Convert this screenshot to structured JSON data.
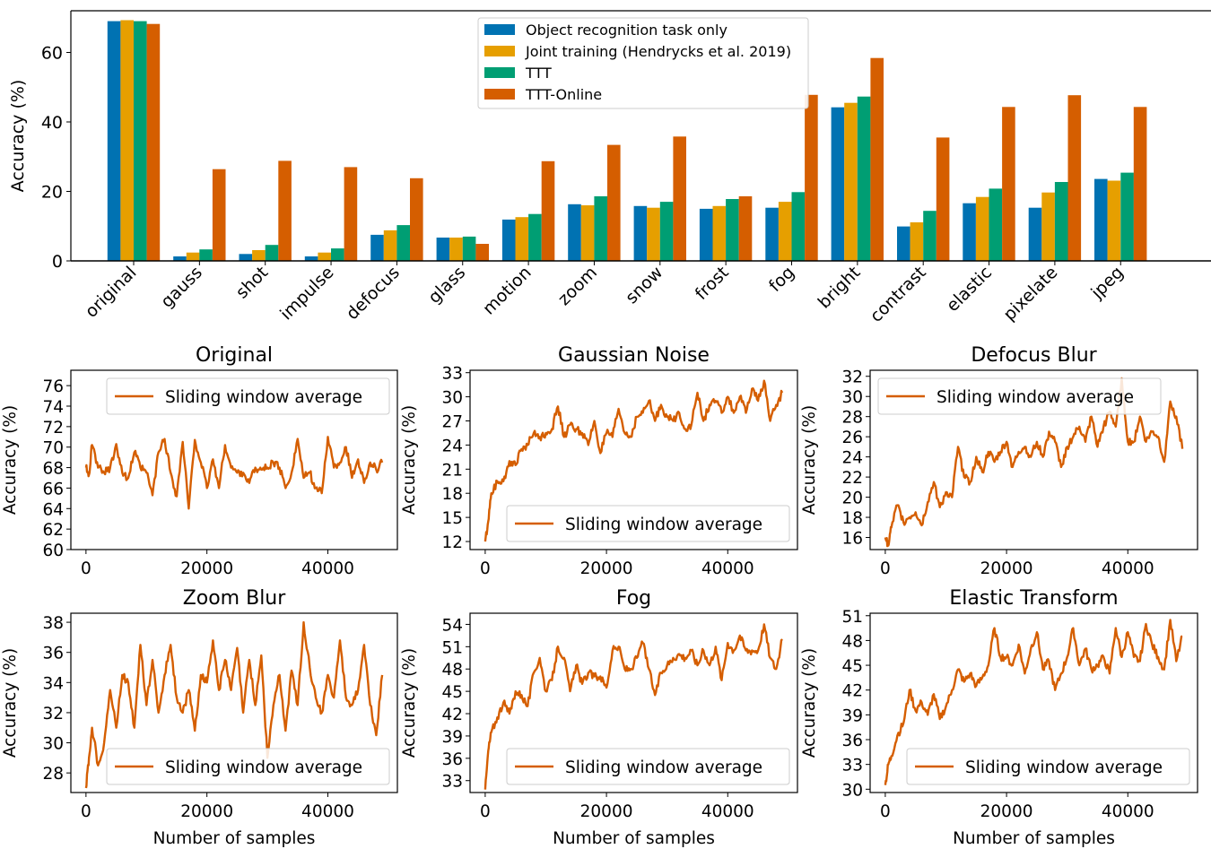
{
  "chart_data": [
    {
      "type": "bar",
      "ylabel": "Accuracy (%)",
      "xlabel": "",
      "ylim": [
        0,
        72
      ],
      "yticks": [
        0,
        20,
        40,
        60
      ],
      "legend_position": "top-center",
      "categories": [
        "original",
        "gauss",
        "shot",
        "impulse",
        "defocus",
        "glass",
        "motion",
        "zoom",
        "snow",
        "frost",
        "fog",
        "bright",
        "contrast",
        "elastic",
        "pixelate",
        "jpeg"
      ],
      "series": [
        {
          "name": "Object recognition task only",
          "color": "#0072b2",
          "values": [
            69.0,
            1.3,
            2.0,
            1.3,
            7.5,
            6.7,
            11.9,
            16.3,
            15.8,
            15.0,
            15.3,
            44.2,
            9.9,
            16.6,
            15.3,
            23.6
          ]
        },
        {
          "name": "Joint training (Hendrycks et al. 2019)",
          "color": "#e69f00",
          "values": [
            69.3,
            2.4,
            3.1,
            2.4,
            8.8,
            6.7,
            12.6,
            16.0,
            15.3,
            15.8,
            17.0,
            45.5,
            11.1,
            18.4,
            19.7,
            23.1
          ]
        },
        {
          "name": "TTT",
          "color": "#009e73",
          "values": [
            69.0,
            3.3,
            4.6,
            3.6,
            10.3,
            7.0,
            13.5,
            18.6,
            17.0,
            17.8,
            19.8,
            47.3,
            14.4,
            20.8,
            22.7,
            25.4
          ]
        },
        {
          "name": "TTT-Online",
          "color": "#d55e00",
          "values": [
            68.2,
            26.4,
            28.8,
            27.0,
            23.8,
            4.9,
            28.7,
            33.4,
            35.8,
            18.6,
            47.8,
            58.4,
            35.5,
            44.3,
            47.7,
            44.3
          ]
        }
      ]
    },
    {
      "type": "line",
      "title": "Original",
      "ylabel": "Accuracy (%)",
      "xlabel": "",
      "xlim": [
        -2500,
        51500
      ],
      "xticks": [
        0,
        20000,
        40000
      ],
      "ylim": [
        60,
        77.5
      ],
      "yticks": [
        60,
        62,
        64,
        66,
        68,
        70,
        72,
        74,
        76
      ],
      "legend_position": "upper-right",
      "series": [
        {
          "name": "Sliding window average",
          "color": "#d55e00",
          "x": [
            0,
            500,
            1000,
            2000,
            3000,
            4000,
            5000,
            6000,
            7000,
            8000,
            9000,
            10000,
            11000,
            12000,
            13000,
            14000,
            15000,
            16000,
            17000,
            18000,
            19000,
            20000,
            21000,
            22000,
            23000,
            24000,
            25000,
            26000,
            27000,
            28000,
            29000,
            30000,
            31000,
            32000,
            33000,
            34000,
            35000,
            36000,
            37000,
            38000,
            39000,
            40000,
            41000,
            42000,
            43000,
            44000,
            45000,
            46000,
            47000,
            48000,
            49000
          ],
          "y": [
            68.0,
            67.3,
            70.2,
            68.0,
            67.5,
            68.0,
            70.3,
            67.5,
            67.0,
            69.5,
            68.0,
            67.5,
            65.3,
            69.5,
            70.8,
            67.5,
            65.2,
            70.5,
            64.0,
            70.7,
            68.5,
            66.0,
            68.8,
            66.0,
            70.2,
            68.0,
            67.5,
            67.5,
            66.5,
            68.0,
            67.8,
            68.0,
            68.5,
            68.0,
            66.0,
            67.5,
            70.8,
            67.0,
            67.5,
            66.0,
            65.5,
            71.0,
            68.0,
            68.5,
            70.0,
            67.0,
            68.8,
            66.5,
            68.5,
            67.8,
            68.5
          ]
        }
      ]
    },
    {
      "type": "line",
      "title": "Gaussian Noise",
      "ylabel": "Accuracy (%)",
      "xlabel": "",
      "xlim": [
        -2500,
        51500
      ],
      "xticks": [
        0,
        20000,
        40000
      ],
      "ylim": [
        11,
        33.3
      ],
      "yticks": [
        12,
        15,
        18,
        21,
        24,
        27,
        30,
        33
      ],
      "legend_position": "lower-right",
      "series": [
        {
          "name": "Sliding window average",
          "color": "#d55e00",
          "x": [
            0,
            500,
            1000,
            2000,
            3000,
            4000,
            5000,
            6000,
            7000,
            8000,
            9000,
            10000,
            11000,
            12000,
            13000,
            14000,
            15000,
            16000,
            17000,
            18000,
            19000,
            20000,
            21000,
            22000,
            23000,
            24000,
            25000,
            26000,
            27000,
            28000,
            29000,
            30000,
            31000,
            32000,
            33000,
            34000,
            35000,
            36000,
            37000,
            38000,
            39000,
            40000,
            41000,
            42000,
            43000,
            44000,
            45000,
            46000,
            47000,
            48000,
            49000
          ],
          "y": [
            12.0,
            14.5,
            18.0,
            19.5,
            19.5,
            22.0,
            21.5,
            23.5,
            24.0,
            25.5,
            25.0,
            25.5,
            26.0,
            28.8,
            25.0,
            26.5,
            26.0,
            25.5,
            24.0,
            27.0,
            23.0,
            25.5,
            25.0,
            28.5,
            25.5,
            25.0,
            27.5,
            28.0,
            29.5,
            27.0,
            29.0,
            27.5,
            27.0,
            28.0,
            26.0,
            26.5,
            30.5,
            27.0,
            29.0,
            29.5,
            28.0,
            30.0,
            28.0,
            30.0,
            28.0,
            31.0,
            29.5,
            32.0,
            27.0,
            29.0,
            30.5
          ]
        }
      ]
    },
    {
      "type": "line",
      "title": "Defocus Blur",
      "ylabel": "Accuracy (%)",
      "xlabel": "",
      "xlim": [
        -2500,
        51500
      ],
      "xticks": [
        0,
        20000,
        40000
      ],
      "ylim": [
        14.8,
        32.6
      ],
      "yticks": [
        16,
        18,
        20,
        22,
        24,
        26,
        28,
        30,
        32
      ],
      "legend_position": "upper-left",
      "series": [
        {
          "name": "Sliding window average",
          "color": "#d55e00",
          "x": [
            0,
            500,
            1000,
            2000,
            3000,
            4000,
            5000,
            6000,
            7000,
            8000,
            9000,
            10000,
            11000,
            12000,
            13000,
            14000,
            15000,
            16000,
            17000,
            18000,
            19000,
            20000,
            21000,
            22000,
            23000,
            24000,
            25000,
            26000,
            27000,
            28000,
            29000,
            30000,
            31000,
            32000,
            33000,
            34000,
            35000,
            36000,
            37000,
            38000,
            39000,
            40000,
            41000,
            42000,
            43000,
            44000,
            45000,
            46000,
            47000,
            48000,
            49000
          ],
          "y": [
            16.0,
            15.2,
            17.0,
            19.2,
            17.5,
            18.0,
            18.5,
            17.2,
            19.5,
            21.5,
            19.0,
            20.5,
            20.0,
            25.0,
            22.0,
            21.5,
            24.0,
            22.5,
            24.5,
            23.5,
            24.5,
            25.5,
            23.0,
            24.5,
            25.0,
            24.0,
            25.5,
            24.0,
            26.5,
            25.5,
            23.0,
            25.0,
            26.0,
            27.0,
            25.5,
            28.0,
            25.0,
            27.0,
            28.5,
            27.0,
            31.8,
            25.5,
            25.5,
            28.0,
            25.5,
            26.5,
            26.0,
            23.5,
            29.5,
            28.0,
            24.8
          ]
        }
      ]
    },
    {
      "type": "line",
      "title": "Zoom Blur",
      "ylabel": "Accuracy (%)",
      "xlabel": "Number of samples",
      "xlim": [
        -2500,
        51500
      ],
      "xticks": [
        0,
        20000,
        40000
      ],
      "ylim": [
        26.7,
        38.6
      ],
      "yticks": [
        28,
        30,
        32,
        34,
        36,
        38
      ],
      "legend_position": "lower-right",
      "series": [
        {
          "name": "Sliding window average",
          "color": "#d55e00",
          "x": [
            0,
            500,
            1000,
            2000,
            3000,
            4000,
            5000,
            6000,
            7000,
            8000,
            9000,
            10000,
            11000,
            12000,
            13000,
            14000,
            15000,
            16000,
            17000,
            18000,
            19000,
            20000,
            21000,
            22000,
            23000,
            24000,
            25000,
            26000,
            27000,
            28000,
            29000,
            30000,
            31000,
            32000,
            33000,
            34000,
            35000,
            36000,
            37000,
            38000,
            39000,
            40000,
            41000,
            42000,
            43000,
            44000,
            45000,
            46000,
            47000,
            48000,
            49000
          ],
          "y": [
            27.0,
            29.0,
            31.0,
            28.5,
            30.0,
            33.5,
            31.0,
            34.5,
            34.0,
            31.0,
            36.5,
            32.5,
            35.5,
            32.0,
            34.5,
            36.5,
            33.0,
            32.0,
            33.5,
            30.8,
            34.5,
            34.0,
            36.8,
            33.5,
            35.5,
            33.5,
            36.3,
            32.0,
            35.5,
            32.5,
            35.8,
            29.0,
            32.5,
            34.5,
            30.8,
            34.8,
            32.5,
            38.0,
            35.0,
            33.0,
            32.0,
            34.5,
            33.0,
            36.8,
            33.0,
            32.5,
            33.5,
            36.5,
            32.5,
            30.5,
            34.5
          ]
        }
      ]
    },
    {
      "type": "line",
      "title": "Fog",
      "ylabel": "Accuracy (%)",
      "xlabel": "Number of samples",
      "xlim": [
        -2500,
        51500
      ],
      "xticks": [
        0,
        20000,
        40000
      ],
      "ylim": [
        31.4,
        55.5
      ],
      "yticks": [
        33,
        36,
        39,
        42,
        45,
        48,
        51,
        54
      ],
      "legend_position": "lower-right",
      "series": [
        {
          "name": "Sliding window average",
          "color": "#d55e00",
          "x": [
            0,
            500,
            1000,
            2000,
            3000,
            4000,
            5000,
            6000,
            7000,
            8000,
            9000,
            10000,
            11000,
            12000,
            13000,
            14000,
            15000,
            16000,
            17000,
            18000,
            19000,
            20000,
            21000,
            22000,
            23000,
            24000,
            25000,
            26000,
            27000,
            28000,
            29000,
            30000,
            31000,
            32000,
            33000,
            34000,
            35000,
            36000,
            37000,
            38000,
            39000,
            40000,
            41000,
            42000,
            43000,
            44000,
            45000,
            46000,
            47000,
            48000,
            49000
          ],
          "y": [
            31.8,
            37.0,
            39.5,
            41.5,
            43.5,
            42.0,
            45.0,
            44.5,
            43.0,
            47.5,
            49.5,
            45.0,
            46.5,
            51.0,
            49.5,
            45.0,
            48.5,
            46.0,
            47.5,
            47.0,
            47.0,
            45.5,
            50.5,
            51.0,
            48.0,
            48.0,
            49.5,
            51.5,
            48.0,
            44.5,
            47.5,
            48.5,
            49.5,
            50.0,
            49.5,
            50.5,
            48.5,
            50.5,
            48.5,
            51.0,
            46.5,
            51.5,
            50.5,
            52.5,
            50.5,
            50.5,
            50.5,
            54.0,
            49.5,
            48.0,
            52.0
          ]
        }
      ]
    },
    {
      "type": "line",
      "title": "Elastic Transform",
      "ylabel": "Accuracy (%)",
      "xlabel": "Number of samples",
      "xlim": [
        -2500,
        51500
      ],
      "xticks": [
        0,
        20000,
        40000
      ],
      "ylim": [
        29.6,
        51.3
      ],
      "yticks": [
        30,
        33,
        36,
        39,
        42,
        45,
        48,
        51
      ],
      "legend_position": "lower-right",
      "series": [
        {
          "name": "Sliding window average",
          "color": "#d55e00",
          "x": [
            0,
            500,
            1000,
            2000,
            3000,
            4000,
            5000,
            6000,
            7000,
            8000,
            9000,
            10000,
            11000,
            12000,
            13000,
            14000,
            15000,
            16000,
            17000,
            18000,
            19000,
            20000,
            21000,
            22000,
            23000,
            24000,
            25000,
            26000,
            27000,
            28000,
            29000,
            30000,
            31000,
            32000,
            33000,
            34000,
            35000,
            36000,
            37000,
            38000,
            39000,
            40000,
            41000,
            42000,
            43000,
            44000,
            45000,
            46000,
            47000,
            48000,
            49000
          ],
          "y": [
            30.5,
            33.0,
            34.0,
            36.5,
            38.0,
            42.0,
            39.5,
            40.5,
            39.0,
            41.5,
            38.5,
            40.0,
            42.0,
            44.5,
            43.0,
            44.0,
            42.5,
            43.5,
            45.0,
            49.5,
            46.0,
            46.0,
            45.0,
            47.5,
            44.0,
            47.0,
            49.0,
            44.5,
            45.5,
            42.0,
            44.0,
            46.0,
            49.5,
            45.0,
            47.0,
            44.5,
            45.0,
            46.0,
            44.0,
            49.5,
            46.0,
            49.0,
            46.0,
            45.5,
            50.0,
            47.5,
            46.0,
            44.5,
            50.5,
            45.5,
            48.5
          ]
        }
      ]
    }
  ]
}
